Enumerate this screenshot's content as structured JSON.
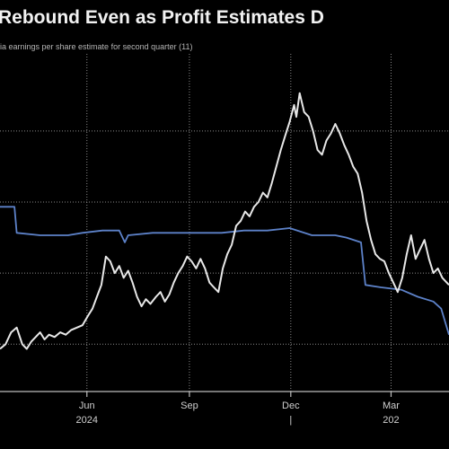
{
  "chart_data": {
    "type": "line",
    "title": "Rebound Even as Profit Estimates D",
    "subtitle": "ia earnings per share estimate for second quarter (11)",
    "x_axis": {
      "type": "time",
      "range": [
        "2024-03-15",
        "2025-04-22"
      ],
      "ticks": [
        {
          "date": "2024-06-01",
          "label": "Jun",
          "year_label": "2024"
        },
        {
          "date": "2024-09-01",
          "label": "Sep",
          "year_label": ""
        },
        {
          "date": "2024-12-01",
          "label": "Dec",
          "year_label": "|"
        },
        {
          "date": "2025-03-01",
          "label": "Mar",
          "year_label": "202"
        }
      ]
    },
    "grid": true,
    "legend": "none",
    "series": [
      {
        "key": "price",
        "color": "#e8e8e8",
        "points": [
          [
            "2024-03-15",
            18
          ],
          [
            "2024-03-20",
            20
          ],
          [
            "2024-03-25",
            25
          ],
          [
            "2024-03-30",
            27
          ],
          [
            "2024-04-04",
            20
          ],
          [
            "2024-04-08",
            18
          ],
          [
            "2024-04-12",
            21
          ],
          [
            "2024-04-16",
            23
          ],
          [
            "2024-04-20",
            25
          ],
          [
            "2024-04-24",
            22
          ],
          [
            "2024-04-28",
            24
          ],
          [
            "2024-05-03",
            23
          ],
          [
            "2024-05-08",
            25
          ],
          [
            "2024-05-13",
            24
          ],
          [
            "2024-05-18",
            26
          ],
          [
            "2024-05-23",
            27
          ],
          [
            "2024-05-28",
            28
          ],
          [
            "2024-06-02",
            32
          ],
          [
            "2024-06-06",
            35
          ],
          [
            "2024-06-10",
            40
          ],
          [
            "2024-06-14",
            45
          ],
          [
            "2024-06-18",
            57
          ],
          [
            "2024-06-22",
            55
          ],
          [
            "2024-06-26",
            50
          ],
          [
            "2024-06-30",
            53
          ],
          [
            "2024-07-04",
            48
          ],
          [
            "2024-07-08",
            51
          ],
          [
            "2024-07-12",
            46
          ],
          [
            "2024-07-16",
            40
          ],
          [
            "2024-07-20",
            36
          ],
          [
            "2024-07-24",
            39
          ],
          [
            "2024-07-28",
            37
          ],
          [
            "2024-08-02",
            40
          ],
          [
            "2024-08-06",
            42
          ],
          [
            "2024-08-10",
            38
          ],
          [
            "2024-08-14",
            41
          ],
          [
            "2024-08-18",
            46
          ],
          [
            "2024-08-22",
            50
          ],
          [
            "2024-08-26",
            53
          ],
          [
            "2024-08-30",
            57
          ],
          [
            "2024-09-03",
            55
          ],
          [
            "2024-09-07",
            52
          ],
          [
            "2024-09-11",
            56
          ],
          [
            "2024-09-15",
            52
          ],
          [
            "2024-09-19",
            46
          ],
          [
            "2024-09-23",
            44
          ],
          [
            "2024-09-27",
            42
          ],
          [
            "2024-10-01",
            52
          ],
          [
            "2024-10-05",
            58
          ],
          [
            "2024-10-09",
            62
          ],
          [
            "2024-10-13",
            70
          ],
          [
            "2024-10-17",
            72
          ],
          [
            "2024-10-21",
            76
          ],
          [
            "2024-10-25",
            74
          ],
          [
            "2024-10-29",
            78
          ],
          [
            "2024-11-02",
            80
          ],
          [
            "2024-11-06",
            84
          ],
          [
            "2024-11-10",
            82
          ],
          [
            "2024-11-14",
            88
          ],
          [
            "2024-11-18",
            95
          ],
          [
            "2024-11-22",
            102
          ],
          [
            "2024-11-26",
            108
          ],
          [
            "2024-11-30",
            114
          ],
          [
            "2024-12-04",
            121
          ],
          [
            "2024-12-06",
            116
          ],
          [
            "2024-12-09",
            126
          ],
          [
            "2024-12-13",
            118
          ],
          [
            "2024-12-17",
            116
          ],
          [
            "2024-12-21",
            110
          ],
          [
            "2024-12-25",
            102
          ],
          [
            "2024-12-29",
            100
          ],
          [
            "2025-01-02",
            106
          ],
          [
            "2025-01-06",
            109
          ],
          [
            "2025-01-10",
            113
          ],
          [
            "2025-01-14",
            109
          ],
          [
            "2025-01-18",
            104
          ],
          [
            "2025-01-22",
            100
          ],
          [
            "2025-01-26",
            95
          ],
          [
            "2025-01-30",
            92
          ],
          [
            "2025-02-03",
            84
          ],
          [
            "2025-02-07",
            72
          ],
          [
            "2025-02-11",
            64
          ],
          [
            "2025-02-15",
            58
          ],
          [
            "2025-02-19",
            56
          ],
          [
            "2025-02-23",
            55
          ],
          [
            "2025-02-27",
            50
          ],
          [
            "2025-03-03",
            46
          ],
          [
            "2025-03-07",
            42
          ],
          [
            "2025-03-11",
            48
          ],
          [
            "2025-03-15",
            58
          ],
          [
            "2025-03-19",
            66
          ],
          [
            "2025-03-23",
            56
          ],
          [
            "2025-03-27",
            60
          ],
          [
            "2025-03-31",
            64
          ],
          [
            "2025-04-04",
            56
          ],
          [
            "2025-04-08",
            50
          ],
          [
            "2025-04-12",
            52
          ],
          [
            "2025-04-16",
            48
          ],
          [
            "2025-04-22",
            45
          ]
        ]
      },
      {
        "key": "eps_estimate",
        "color": "#5d82c9",
        "points": [
          [
            "2024-03-15",
            78
          ],
          [
            "2024-03-28",
            78
          ],
          [
            "2024-03-30",
            67
          ],
          [
            "2024-04-20",
            66
          ],
          [
            "2024-05-05",
            66
          ],
          [
            "2024-05-15",
            66
          ],
          [
            "2024-05-28",
            67
          ],
          [
            "2024-06-15",
            68
          ],
          [
            "2024-06-30",
            68
          ],
          [
            "2024-07-05",
            63
          ],
          [
            "2024-07-08",
            66
          ],
          [
            "2024-07-30",
            67
          ],
          [
            "2024-08-20",
            67
          ],
          [
            "2024-09-10",
            67
          ],
          [
            "2024-09-30",
            67
          ],
          [
            "2024-10-20",
            68
          ],
          [
            "2024-11-10",
            68
          ],
          [
            "2024-11-30",
            69
          ],
          [
            "2024-12-20",
            66
          ],
          [
            "2025-01-10",
            66
          ],
          [
            "2025-01-20",
            65
          ],
          [
            "2025-02-02",
            63
          ],
          [
            "2025-02-06",
            45
          ],
          [
            "2025-02-20",
            44
          ],
          [
            "2025-03-10",
            43
          ],
          [
            "2025-03-25",
            40
          ],
          [
            "2025-04-08",
            38
          ],
          [
            "2025-04-15",
            35
          ],
          [
            "2025-04-22",
            24
          ]
        ]
      }
    ]
  }
}
